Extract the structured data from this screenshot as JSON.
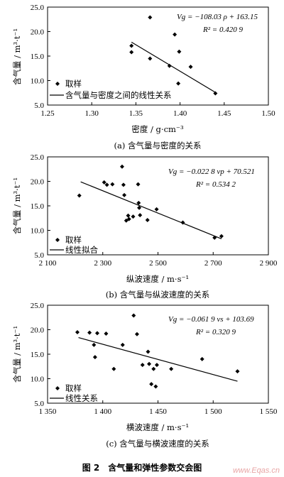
{
  "figure_title": "图 2　含气量和弹性参数交会图",
  "watermark": "www.Eqas.cn",
  "chart_data": [
    {
      "type": "scatter",
      "caption": "(a) 含气量与密度的关系",
      "xlabel": "密度 / g·cm⁻³",
      "ylabel": "含气量 / m³·t⁻¹",
      "xlim": [
        1.25,
        1.5
      ],
      "ylim": [
        5.0,
        25.0
      ],
      "xticks": [
        1.25,
        1.3,
        1.35,
        1.4,
        1.45,
        1.5
      ],
      "xtick_labels": [
        "1.25",
        "1.30",
        "1.35",
        "1.40",
        "1.45",
        "1.50"
      ],
      "yticks": [
        5.0,
        10.0,
        15.0,
        20.0,
        25.0
      ],
      "ytick_labels": [
        "5.0",
        "10.0",
        "15.0",
        "20.0",
        "25.0"
      ],
      "equation": "Vg = −108.03 ρ + 163.15",
      "r2": "R² = 0.420 9",
      "legend": {
        "points": "取样",
        "line": "含气量与密度之间的线性关系"
      },
      "line": {
        "slope": -108.03,
        "intercept": 163.15,
        "x_range": [
          1.345,
          1.44
        ]
      },
      "points": [
        {
          "x": 1.345,
          "y": 17.1
        },
        {
          "x": 1.345,
          "y": 15.8
        },
        {
          "x": 1.366,
          "y": 22.9
        },
        {
          "x": 1.366,
          "y": 14.5
        },
        {
          "x": 1.388,
          "y": 13.0
        },
        {
          "x": 1.394,
          "y": 19.4
        },
        {
          "x": 1.399,
          "y": 15.9
        },
        {
          "x": 1.412,
          "y": 12.8
        },
        {
          "x": 1.398,
          "y": 9.4
        },
        {
          "x": 1.44,
          "y": 7.4
        }
      ]
    },
    {
      "type": "scatter",
      "caption": "(b) 含气量与纵波速度的关系",
      "xlabel": "纵波速度 / m·s⁻¹",
      "ylabel": "含气量 / m³·t⁻¹",
      "xlim": [
        2100,
        2900
      ],
      "ylim": [
        5.0,
        25.0
      ],
      "xticks": [
        2100,
        2300,
        2500,
        2700,
        2900
      ],
      "xtick_labels": [
        "2 100",
        "2 300",
        "2 500",
        "2 700",
        "2 900"
      ],
      "yticks": [
        5.0,
        10.0,
        15.0,
        20.0,
        25.0
      ],
      "ytick_labels": [
        "5.0",
        "10.0",
        "15.0",
        "20.0",
        "25.0"
      ],
      "equation": "Vg = −0.022 8 vp + 70.521",
      "r2": "R² = 0.534 2",
      "legend": {
        "points": "取样",
        "line": "线性拟合"
      },
      "line": {
        "slope": -0.0228,
        "intercept": 70.521,
        "x_range": [
          2220,
          2730
        ]
      },
      "points": [
        {
          "x": 2215,
          "y": 17.1
        },
        {
          "x": 2305,
          "y": 19.8
        },
        {
          "x": 2315,
          "y": 19.3
        },
        {
          "x": 2335,
          "y": 19.4
        },
        {
          "x": 2370,
          "y": 23.0
        },
        {
          "x": 2375,
          "y": 19.3
        },
        {
          "x": 2378,
          "y": 17.2
        },
        {
          "x": 2385,
          "y": 12.0
        },
        {
          "x": 2392,
          "y": 13.0
        },
        {
          "x": 2395,
          "y": 12.3
        },
        {
          "x": 2410,
          "y": 12.8
        },
        {
          "x": 2428,
          "y": 19.4
        },
        {
          "x": 2430,
          "y": 15.6
        },
        {
          "x": 2432,
          "y": 14.6
        },
        {
          "x": 2435,
          "y": 13.1
        },
        {
          "x": 2462,
          "y": 12.1
        },
        {
          "x": 2495,
          "y": 14.3
        },
        {
          "x": 2590,
          "y": 11.6
        },
        {
          "x": 2705,
          "y": 8.5
        },
        {
          "x": 2730,
          "y": 8.8
        }
      ]
    },
    {
      "type": "scatter",
      "caption": "(c) 含气量与横波速度的关系",
      "xlabel": "横波速度 / m·s⁻¹",
      "ylabel": "含气量 / m³·t⁻¹",
      "xlim": [
        1350,
        1550
      ],
      "ylim": [
        5.0,
        25.0
      ],
      "xticks": [
        1350,
        1400,
        1450,
        1500,
        1550
      ],
      "xtick_labels": [
        "1 350",
        "1 400",
        "1 450",
        "1 500",
        "1 550"
      ],
      "yticks": [
        5.0,
        10.0,
        15.0,
        20.0,
        25.0
      ],
      "ytick_labels": [
        "5.0",
        "10.0",
        "15.0",
        "20.0",
        "25.0"
      ],
      "equation": "Vg = −0.061 9 vs + 103.69",
      "r2": "R² = 0.320 9",
      "legend": {
        "points": "取样",
        "line": "线性关系"
      },
      "line": {
        "slope": -0.0619,
        "intercept": 103.69,
        "x_range": [
          1378,
          1522
        ]
      },
      "points": [
        {
          "x": 1377,
          "y": 19.5
        },
        {
          "x": 1388,
          "y": 19.4
        },
        {
          "x": 1392,
          "y": 16.9
        },
        {
          "x": 1393,
          "y": 14.4
        },
        {
          "x": 1395,
          "y": 19.3
        },
        {
          "x": 1403,
          "y": 19.2
        },
        {
          "x": 1410,
          "y": 12.0
        },
        {
          "x": 1418,
          "y": 16.9
        },
        {
          "x": 1428,
          "y": 22.9
        },
        {
          "x": 1431,
          "y": 19.1
        },
        {
          "x": 1436,
          "y": 12.8
        },
        {
          "x": 1441,
          "y": 15.5
        },
        {
          "x": 1442,
          "y": 13.0
        },
        {
          "x": 1444,
          "y": 8.9
        },
        {
          "x": 1446,
          "y": 12.0
        },
        {
          "x": 1448,
          "y": 8.4
        },
        {
          "x": 1449,
          "y": 12.8
        },
        {
          "x": 1462,
          "y": 12.0
        },
        {
          "x": 1490,
          "y": 14.0
        },
        {
          "x": 1522,
          "y": 11.5
        }
      ]
    }
  ]
}
